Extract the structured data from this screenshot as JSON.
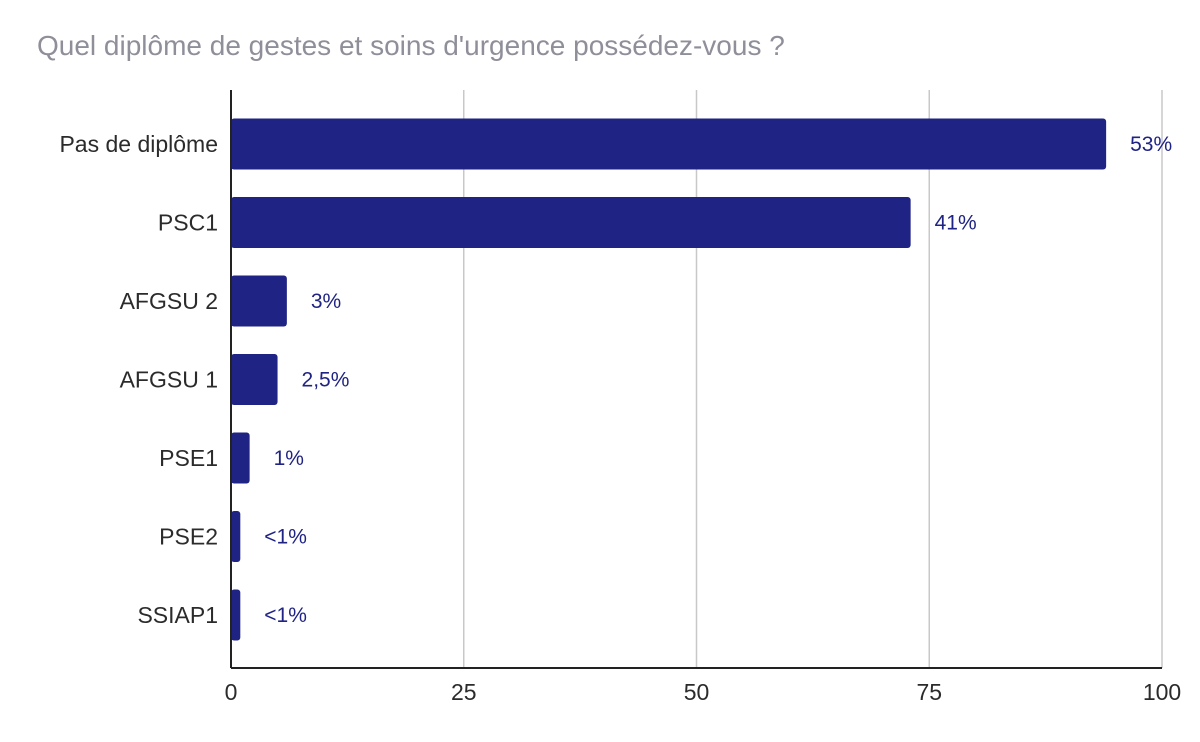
{
  "chart_data": {
    "type": "bar",
    "orientation": "horizontal",
    "title": "Quel diplôme de gestes et soins d'urgence possédez-vous ?",
    "xlabel": "",
    "ylabel": "",
    "xlim": [
      0,
      100
    ],
    "xticks": [
      "0",
      "25",
      "50",
      "75",
      "100"
    ],
    "grid": true,
    "categories": [
      "Pas de diplôme",
      "PSC1",
      "AFGSU 2",
      "AFGSU 1",
      "PSE1",
      "PSE2",
      "SSIAP1"
    ],
    "values": [
      94,
      73,
      6,
      5,
      2,
      1,
      1
    ],
    "data_labels": [
      "53%",
      "41%",
      "3%",
      "2,5%",
      "1%",
      "<1%",
      "<1%"
    ],
    "bar_color": "#1f2383"
  }
}
